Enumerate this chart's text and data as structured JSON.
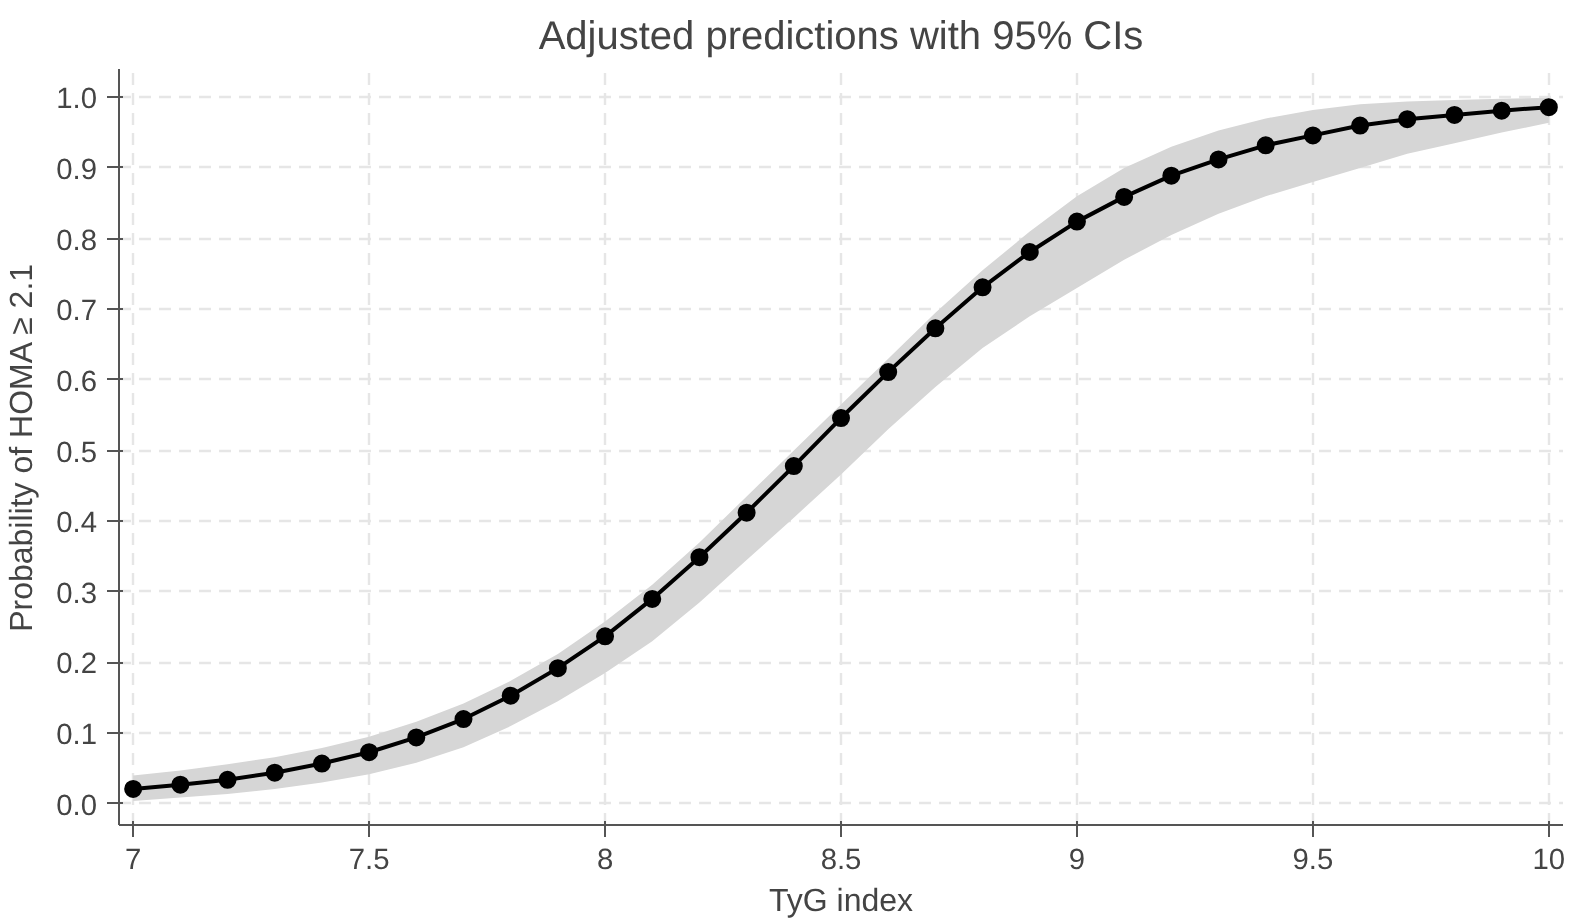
{
  "chart_data": {
    "type": "line",
    "title": "Adjusted predictions with 95% CIs",
    "xlabel": "TyG index",
    "ylabel": "Probability of HOMA ≥ 2.1",
    "x": [
      7.0,
      7.1,
      7.2,
      7.3,
      7.4,
      7.5,
      7.6,
      7.7,
      7.8,
      7.9,
      8.0,
      8.1,
      8.2,
      8.3,
      8.4,
      8.5,
      8.6,
      8.7,
      8.8,
      8.9,
      9.0,
      9.1,
      9.2,
      9.3,
      9.4,
      9.5,
      9.6,
      9.7,
      9.8,
      9.9,
      10.0
    ],
    "series": [
      {
        "color": "#000000",
        "values": [
          0.021,
          0.027,
          0.034,
          0.044,
          0.057,
          0.073,
          0.094,
          0.12,
          0.153,
          0.192,
          0.237,
          0.29,
          0.349,
          0.412,
          0.478,
          0.546,
          0.611,
          0.673,
          0.731,
          0.781,
          0.824,
          0.859,
          0.889,
          0.912,
          0.932,
          0.946,
          0.96,
          0.969,
          0.975,
          0.981,
          0.986
        ],
        "lower": [
          0.004,
          0.009,
          0.014,
          0.021,
          0.03,
          0.042,
          0.058,
          0.08,
          0.11,
          0.145,
          0.185,
          0.23,
          0.285,
          0.345,
          0.405,
          0.466,
          0.53,
          0.59,
          0.645,
          0.69,
          0.73,
          0.77,
          0.805,
          0.835,
          0.86,
          0.88,
          0.9,
          0.92,
          0.935,
          0.95,
          0.964
        ],
        "upper": [
          0.04,
          0.047,
          0.056,
          0.066,
          0.079,
          0.095,
          0.116,
          0.142,
          0.174,
          0.212,
          0.258,
          0.31,
          0.37,
          0.435,
          0.5,
          0.565,
          0.63,
          0.695,
          0.755,
          0.81,
          0.86,
          0.9,
          0.93,
          0.953,
          0.97,
          0.982,
          0.99,
          0.994,
          0.996,
          0.998,
          0.999
        ]
      }
    ],
    "xlim": [
      6.97,
      10.03
    ],
    "ylim": [
      -0.03,
      1.04
    ],
    "xticks": [
      7,
      7.5,
      8,
      8.5,
      9,
      9.5,
      10
    ],
    "yticks": [
      {
        "value": 0,
        "label": "0.0"
      },
      0.1,
      0.2,
      0.3,
      0.4,
      0.5,
      0.6,
      0.7,
      0.8,
      0.9,
      {
        "value": 1,
        "label": "1.0"
      }
    ],
    "grid": true,
    "marker": "circle",
    "line_style": "solid"
  }
}
